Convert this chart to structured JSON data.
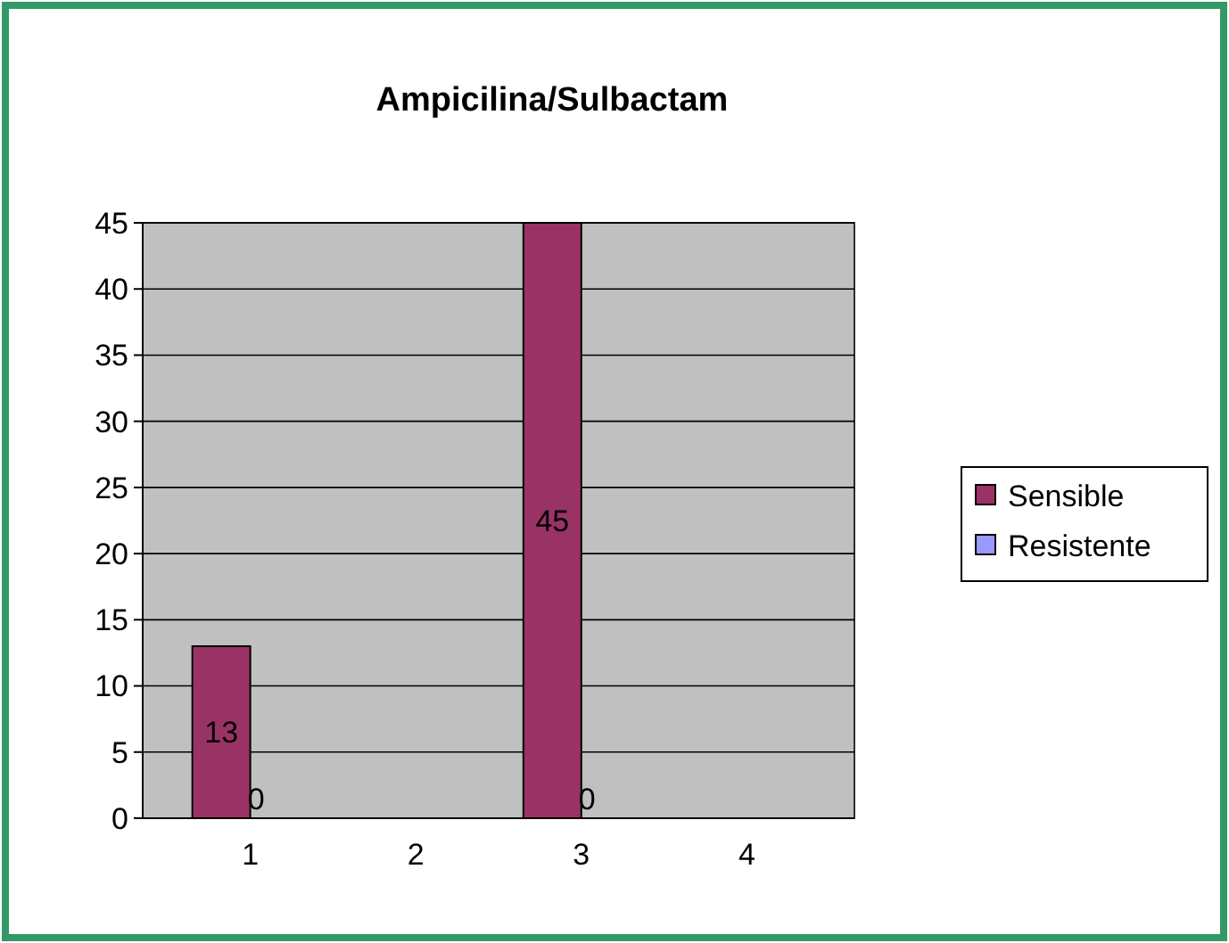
{
  "chart_data": {
    "type": "bar",
    "title": "Ampicilina/Sulbactam",
    "categories": [
      "1",
      "2",
      "3",
      "4"
    ],
    "series": [
      {
        "name": "Sensible",
        "color": "#993366",
        "values": [
          13,
          null,
          45,
          null
        ]
      },
      {
        "name": "Resistente",
        "color": "#9999ff",
        "values": [
          0,
          null,
          0,
          null
        ]
      }
    ],
    "ylim": [
      0,
      45
    ],
    "yticks": [
      0,
      5,
      10,
      15,
      20,
      25,
      30,
      35,
      40,
      45
    ],
    "grid": "y",
    "legend": "right",
    "data_labels": true
  }
}
